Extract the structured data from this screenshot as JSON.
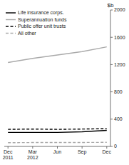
{
  "chart_data": {
    "type": "line",
    "y_label": "$b",
    "categories": [
      "Dec\n2011",
      "Mar\n2012",
      "Jun",
      "Sep",
      "Dec"
    ],
    "ylim": [
      0,
      2000
    ],
    "yticks": [
      0,
      400,
      800,
      1200,
      1600,
      2000
    ],
    "legend": "upper left",
    "grid": false,
    "series": [
      {
        "name": "Life insurance corps.",
        "color": "#000000",
        "line_style": "solid",
        "values": [
          205,
          205,
          205,
          215,
          235
        ]
      },
      {
        "name": "Superannuation funds",
        "color": "#aaaaaa",
        "line_style": "solid",
        "values": [
          1230,
          1290,
          1340,
          1390,
          1460
        ]
      },
      {
        "name": "Public offer unit trusts",
        "color": "#000000",
        "line_style": "dashed",
        "values": [
          250,
          255,
          250,
          255,
          260
        ]
      },
      {
        "name": "All other",
        "color": "#aaaaaa",
        "line_style": "dashed",
        "values": [
          55,
          57,
          57,
          58,
          60
        ]
      }
    ]
  }
}
